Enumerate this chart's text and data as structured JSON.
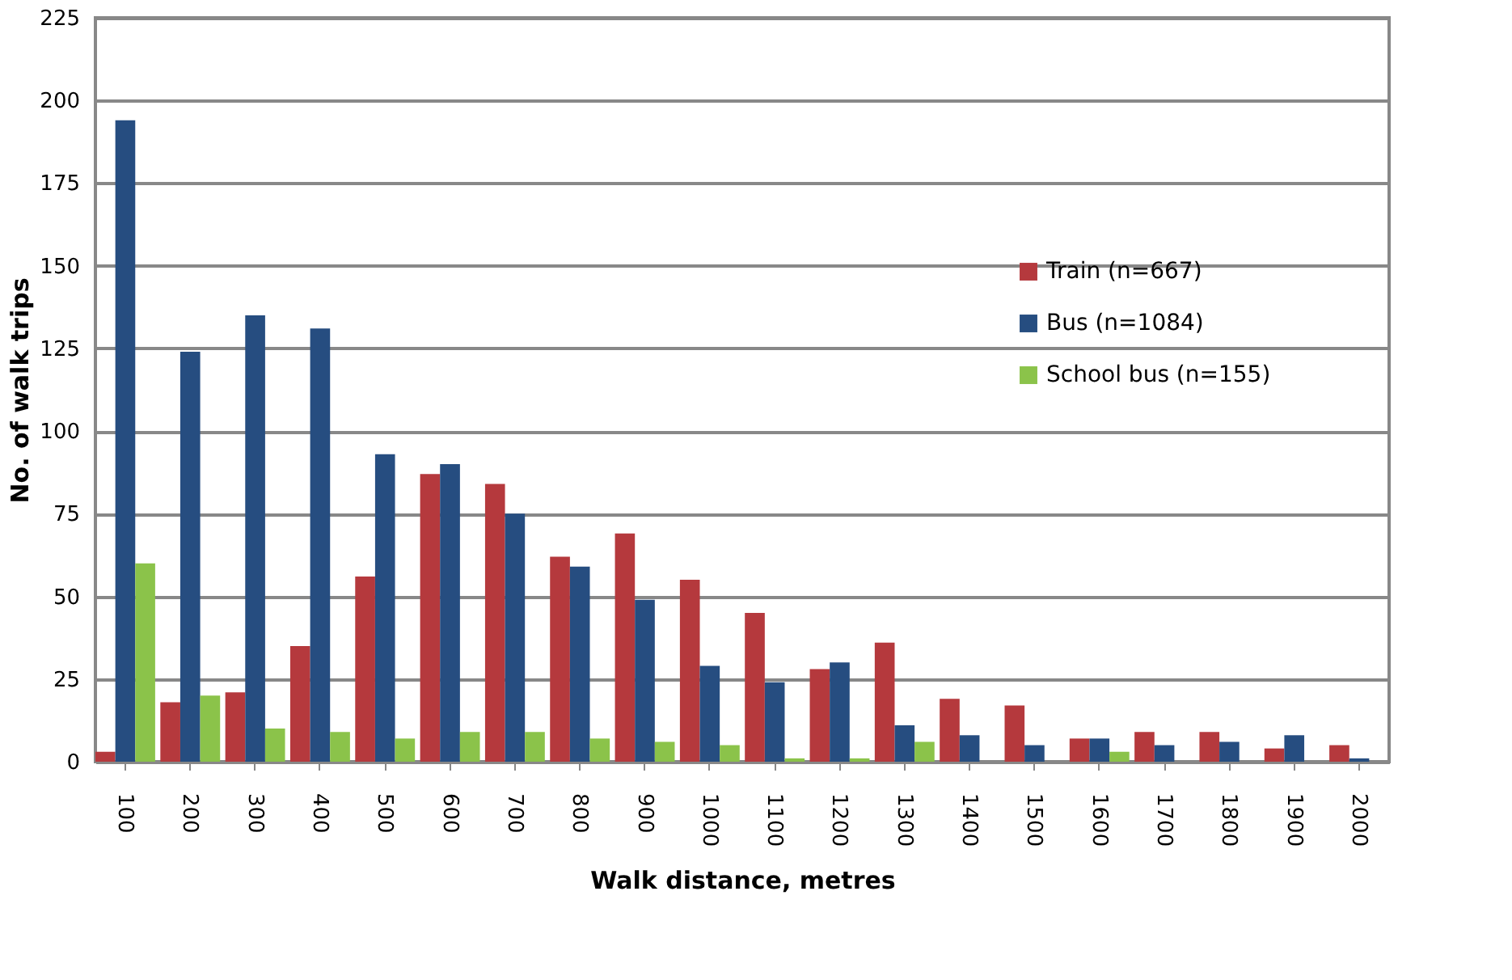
{
  "chart_data": {
    "type": "bar",
    "xlabel": "Walk distance, metres",
    "ylabel": "No. of walk trips",
    "categories": [
      "100",
      "200",
      "300",
      "400",
      "500",
      "600",
      "700",
      "800",
      "900",
      "1000",
      "1100",
      "1200",
      "1300",
      "1400",
      "1500",
      "1600",
      "1700",
      "1800",
      "1900",
      "2000"
    ],
    "series": [
      {
        "name": "Train (n=667)",
        "color": "#b5393d",
        "values": [
          3,
          18,
          21,
          35,
          56,
          87,
          84,
          62,
          69,
          55,
          45,
          28,
          36,
          19,
          17,
          7,
          9,
          9,
          4,
          5
        ]
      },
      {
        "name": "Bus (n=1084)",
        "color": "#264d80",
        "values": [
          194,
          124,
          135,
          131,
          93,
          90,
          75,
          59,
          49,
          29,
          24,
          30,
          11,
          8,
          5,
          7,
          5,
          6,
          8,
          1
        ]
      },
      {
        "name": "School bus (n=155)",
        "color": "#8bc34a",
        "values": [
          60,
          20,
          10,
          9,
          7,
          9,
          9,
          7,
          6,
          5,
          1,
          1,
          6,
          0,
          0,
          3,
          0,
          0,
          0,
          0
        ]
      }
    ],
    "ylim": [
      0,
      225
    ],
    "yticks": [
      0,
      25,
      50,
      75,
      100,
      125,
      150,
      175,
      200,
      225
    ],
    "grid": "y",
    "legend": "right"
  }
}
